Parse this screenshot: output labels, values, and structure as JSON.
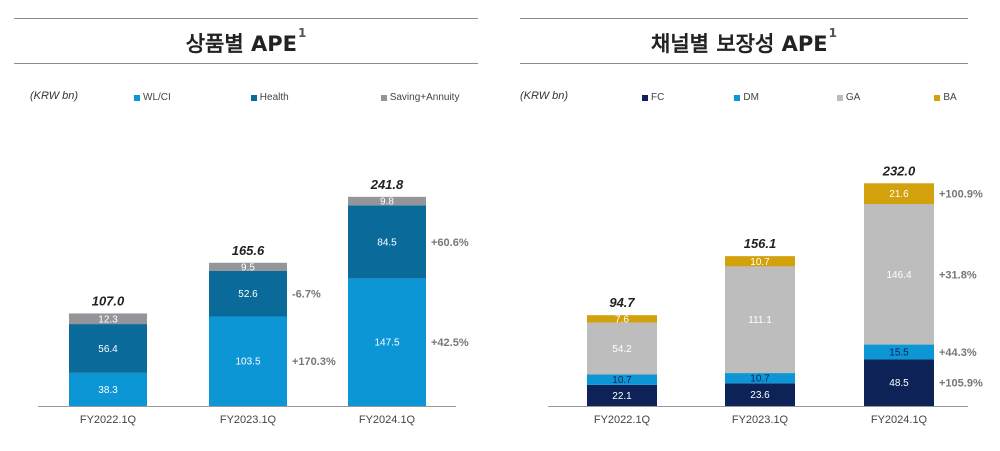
{
  "colors": {
    "wl_ci": "#0c96d6",
    "health": "#0a6a9a",
    "saving": "#939598",
    "fc": "#0d2257",
    "dm": "#0c96d6",
    "ga": "#bdbdbd",
    "ba": "#d2a10c",
    "text_dark": "#222222",
    "growth": "#777777",
    "axis": "#999999"
  },
  "left": {
    "title": "상품별 APE",
    "title_sup": "1",
    "unit": "(KRW bn)"
  },
  "right": {
    "title": "채널별 보장성 APE",
    "title_sup": "1",
    "unit": "(KRW bn)"
  },
  "chart_data": [
    {
      "type": "bar",
      "stacked": true,
      "title": "상품별 APE",
      "unit": "(KRW bn)",
      "categories": [
        "FY2022.1Q",
        "FY2023.1Q",
        "FY2024.1Q"
      ],
      "series": [
        {
          "name": "WL/CI",
          "color": "#0c96d6",
          "label_color": "#ffffff",
          "values": [
            38.3,
            103.5,
            147.5
          ],
          "labels": [
            "38.3",
            "103.5",
            "147.5"
          ]
        },
        {
          "name": "Health",
          "color": "#0a6a9a",
          "label_color": "#ffffff",
          "values": [
            56.4,
            52.6,
            84.5
          ],
          "labels": [
            "56.4",
            "52.6",
            "84.5"
          ]
        },
        {
          "name": "Saving+Annuity",
          "color": "#939598",
          "label_color": "#ffffff",
          "values": [
            12.3,
            9.5,
            9.8
          ],
          "labels": [
            "12.3",
            "9.5",
            "9.8"
          ]
        }
      ],
      "totals": [
        "107.0",
        "165.6",
        "241.8"
      ],
      "growth": [
        {
          "category_index": 1,
          "series_index": 0,
          "text": "+170.3%"
        },
        {
          "category_index": 1,
          "series_index": 1,
          "text": "-6.7%"
        },
        {
          "category_index": 2,
          "series_index": 0,
          "text": "+42.5%"
        },
        {
          "category_index": 2,
          "series_index": 1,
          "text": "+60.6%"
        }
      ],
      "ylim": [
        0,
        260
      ]
    },
    {
      "type": "bar",
      "stacked": true,
      "title": "채널별 보장성 APE",
      "unit": "(KRW bn)",
      "categories": [
        "FY2022.1Q",
        "FY2023.1Q",
        "FY2024.1Q"
      ],
      "series": [
        {
          "name": "FC",
          "color": "#0d2257",
          "label_color": "#ffffff",
          "values": [
            22.1,
            23.6,
            48.5
          ],
          "labels": [
            "22.1",
            "23.6",
            "48.5"
          ]
        },
        {
          "name": "DM",
          "color": "#0c96d6",
          "label_color": "#0d2257",
          "values": [
            10.7,
            10.7,
            15.5
          ],
          "labels": [
            "10.7",
            "10.7",
            "15.5"
          ]
        },
        {
          "name": "GA",
          "color": "#bdbdbd",
          "label_color": "#ffffff",
          "values": [
            54.2,
            111.1,
            146.4
          ],
          "labels": [
            "54.2",
            "111.1",
            "146.4"
          ]
        },
        {
          "name": "BA",
          "color": "#d2a10c",
          "label_color": "#ffffff",
          "values": [
            7.6,
            10.7,
            21.6
          ],
          "labels": [
            "7.6",
            "10.7",
            "21.6"
          ]
        }
      ],
      "totals": [
        "94.7",
        "156.1",
        "232.0"
      ],
      "growth": [
        {
          "category_index": 2,
          "series_index": 0,
          "text": "+105.9%"
        },
        {
          "category_index": 2,
          "series_index": 1,
          "text": "+44.3%"
        },
        {
          "category_index": 2,
          "series_index": 2,
          "text": "+31.8%"
        },
        {
          "category_index": 2,
          "series_index": 3,
          "text": "+100.9%"
        }
      ],
      "ylim": [
        0,
        260
      ]
    }
  ]
}
